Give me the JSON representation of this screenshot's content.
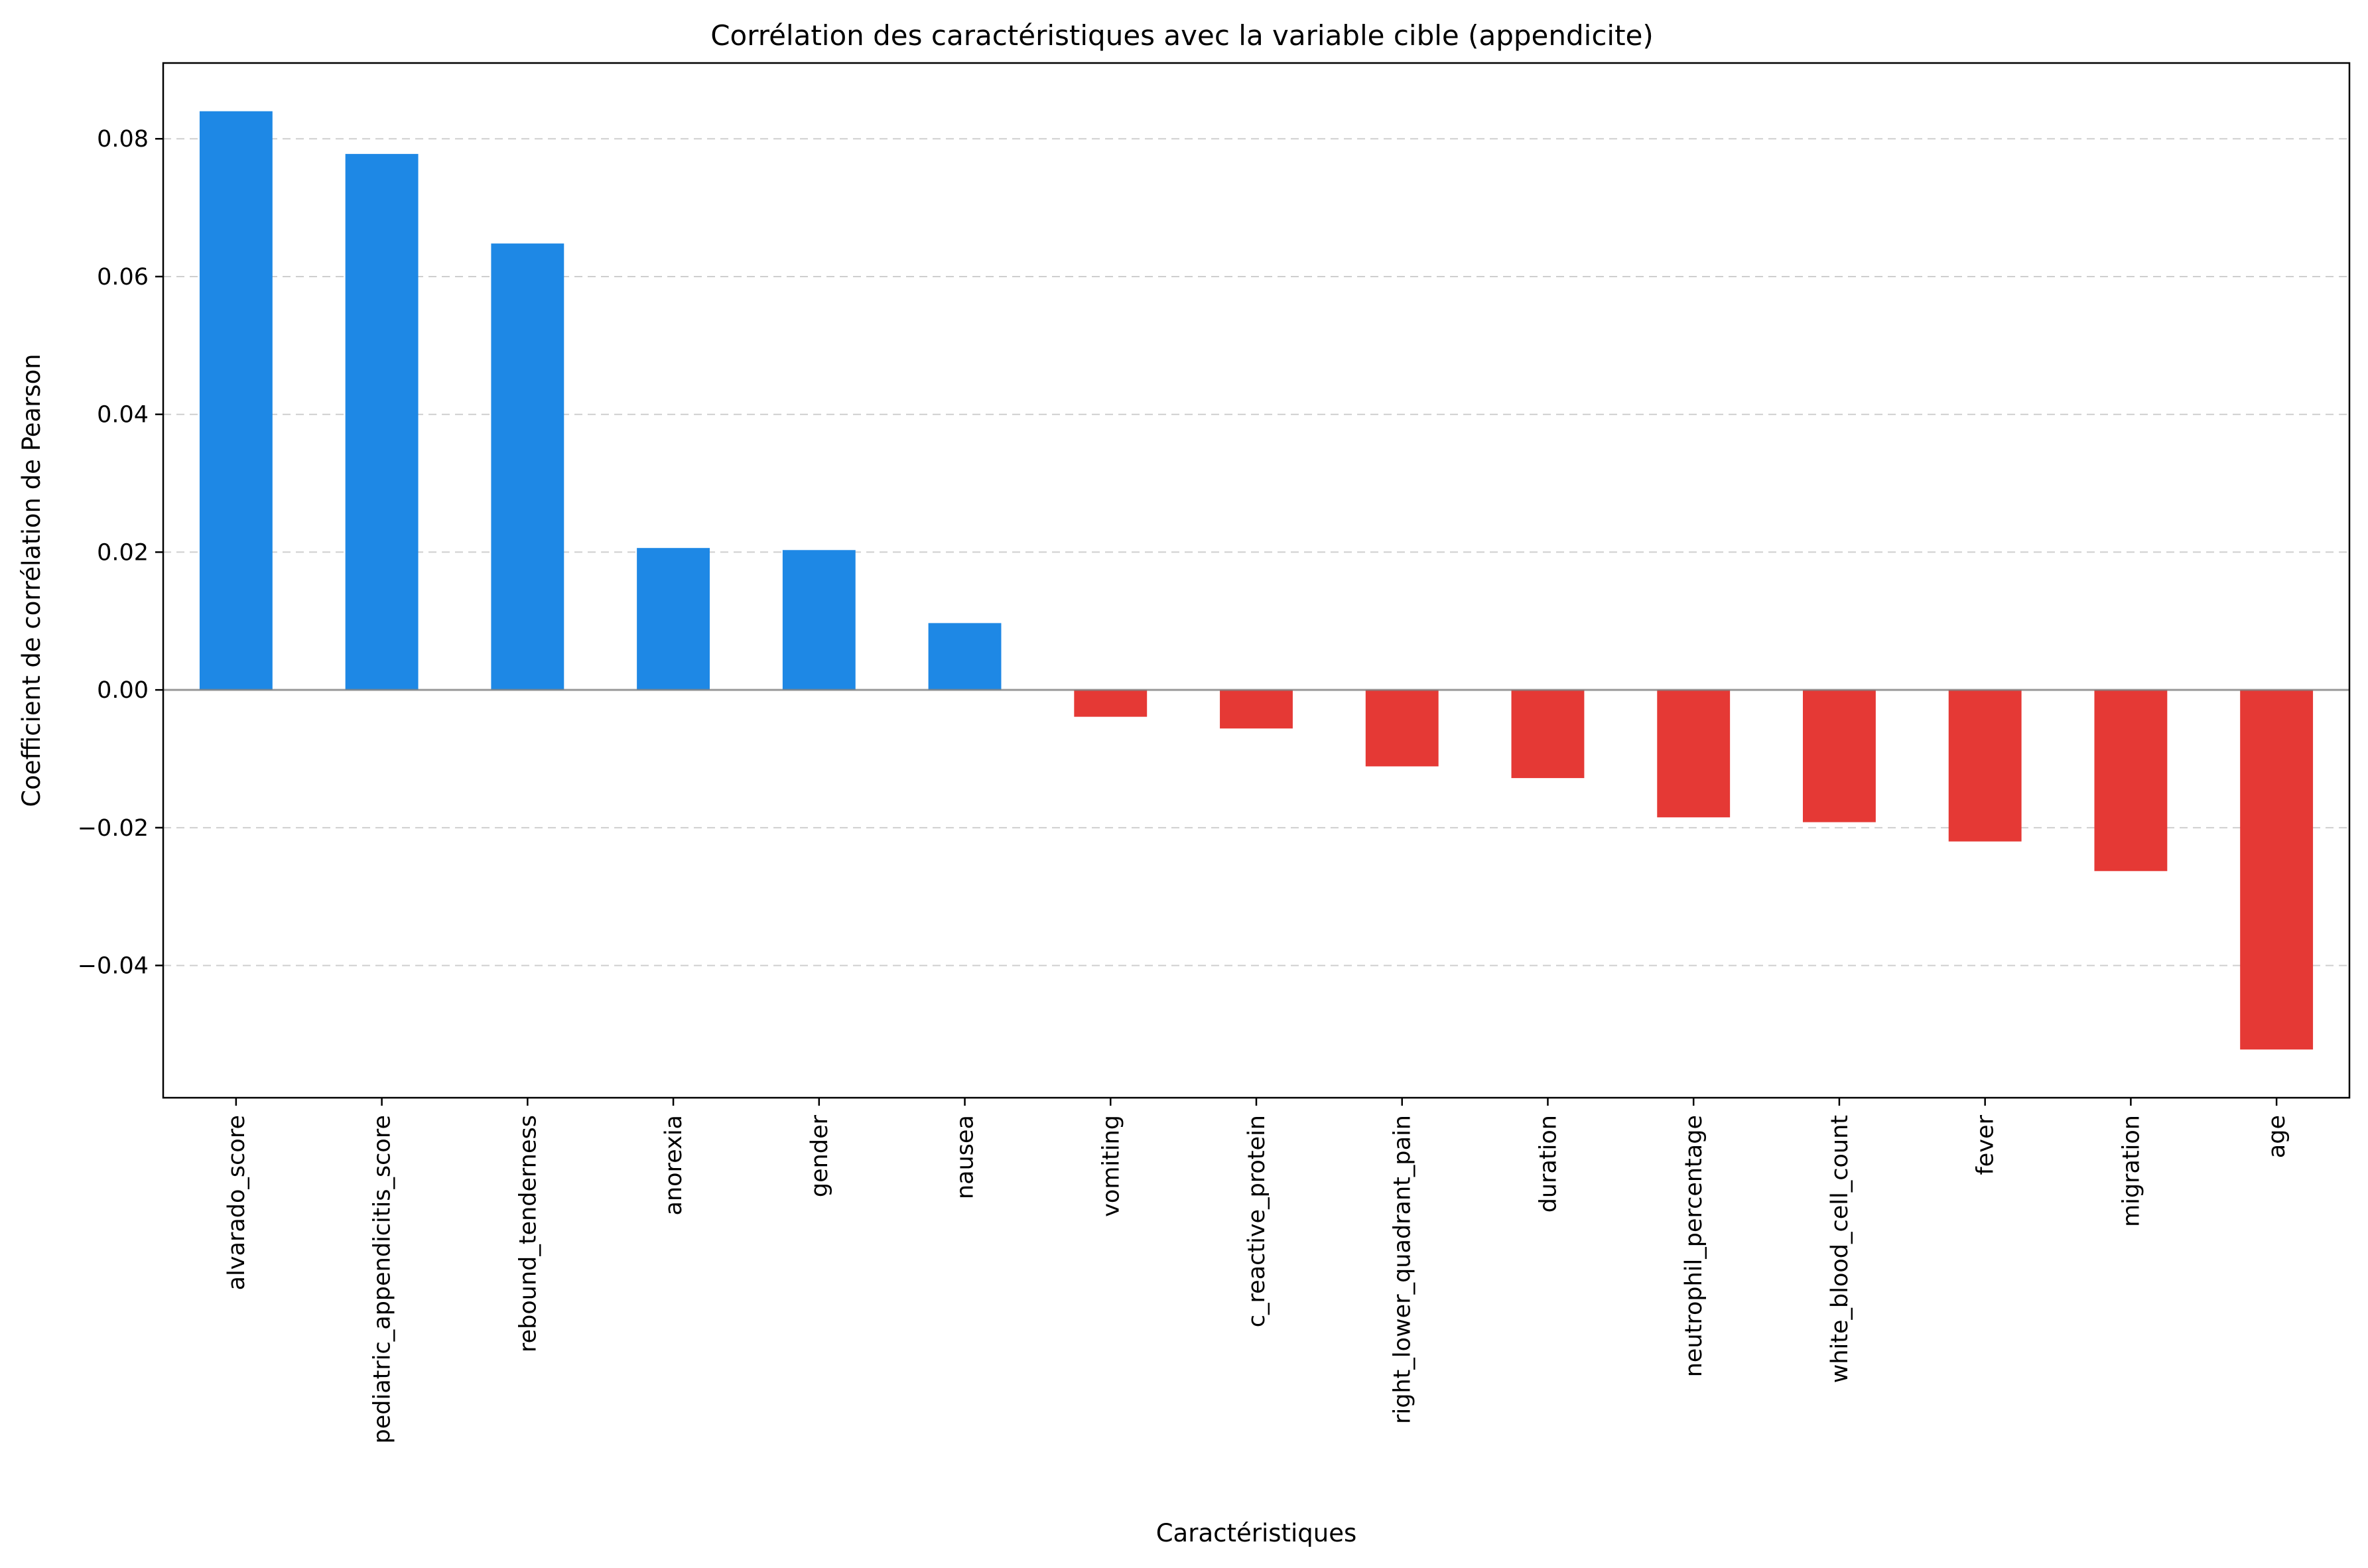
{
  "chart_data": {
    "type": "bar",
    "title": "Corrélation des caractéristiques avec la variable cible (appendicite)",
    "xlabel": "Caractéristiques",
    "ylabel": "Coefficient de corrélation de Pearson",
    "categories": [
      "alvarado_score",
      "pediatric_appendicitis_score",
      "rebound_tenderness",
      "anorexia",
      "gender",
      "nausea",
      "vomiting",
      "c_reactive_protein",
      "right_lower_quadrant_pain",
      "duration",
      "neutrophil_percentage",
      "white_blood_cell_count",
      "fever",
      "migration",
      "age"
    ],
    "values": [
      0.084,
      0.0778,
      0.0648,
      0.0206,
      0.0203,
      0.0097,
      -0.0039,
      -0.0056,
      -0.0111,
      -0.0128,
      -0.0185,
      -0.0192,
      -0.022,
      -0.0263,
      -0.0522
    ],
    "yticks": [
      -0.04,
      -0.02,
      0.0,
      0.02,
      0.04,
      0.06,
      0.08
    ],
    "ytick_labels": [
      "−0.04",
      "−0.02",
      "0.00",
      "0.02",
      "0.04",
      "0.06",
      "0.08"
    ],
    "ylim": [
      -0.0592,
      0.091
    ],
    "grid": "horizontal dashed",
    "colors": {
      "positive": "#1e88e5",
      "negative": "#e53935",
      "zero_line": "#808080"
    }
  }
}
